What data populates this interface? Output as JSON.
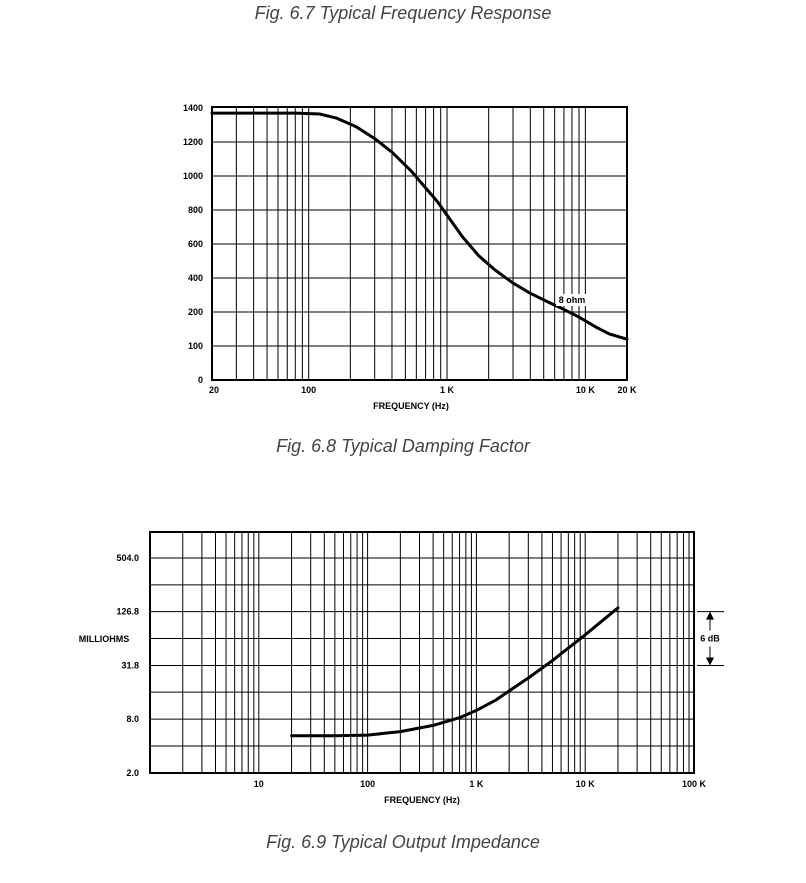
{
  "captions": {
    "fig67": "Fig. 6.7  Typical Frequency Response",
    "fig68": "Fig. 6.8  Typical Damping Factor",
    "fig69": "Fig. 6.9  Typical Output Impedance"
  },
  "chart_data": [
    {
      "type": "line",
      "title": "",
      "xlabel": "FREQUENCY (Hz)",
      "ylabel": "",
      "x_scale": "log",
      "xlim": [
        20,
        20000
      ],
      "x_ticks": [
        "20",
        "100",
        "1 K",
        "10 K",
        "20 K"
      ],
      "y_ticks": [
        "0",
        "100",
        "200",
        "400",
        "600",
        "800",
        "1000",
        "1200",
        "1400"
      ],
      "grid": true,
      "series": [
        {
          "name": "8 ohm",
          "x": [
            20,
            40,
            80,
            120,
            160,
            220,
            300,
            400,
            550,
            700,
            850,
            1000,
            1300,
            1700,
            2200,
            3000,
            4000,
            5500,
            7000,
            9000,
            12000,
            15000,
            20000
          ],
          "y": [
            1370,
            1370,
            1370,
            1365,
            1340,
            1290,
            1220,
            1140,
            1030,
            930,
            850,
            770,
            640,
            530,
            450,
            370,
            310,
            255,
            215,
            185,
            155,
            135,
            120
          ]
        }
      ],
      "annotations": [
        "8 ohm"
      ]
    },
    {
      "type": "line",
      "title": "",
      "xlabel": "FREQUENCY (Hz)",
      "ylabel": "MILLIOHMS",
      "x_scale": "log",
      "y_scale": "log",
      "xlim": [
        1,
        100000
      ],
      "x_ticks": [
        "10",
        "100",
        "1 K",
        "10 K",
        "100 K"
      ],
      "y_ticks": [
        "2.0",
        "8.0",
        "31.8",
        "126.8",
        "504.0"
      ],
      "grid": true,
      "series": [
        {
          "x": [
            20,
            50,
            100,
            200,
            400,
            700,
            1000,
            1500,
            2000,
            3000,
            5000,
            10000,
            20000
          ],
          "y": [
            5.2,
            5.2,
            5.3,
            5.8,
            6.8,
            8.3,
            10.0,
            13.0,
            16.5,
            23.0,
            36.0,
            70.0,
            140.0
          ]
        }
      ],
      "annotations": [
        "6 dB"
      ]
    }
  ]
}
